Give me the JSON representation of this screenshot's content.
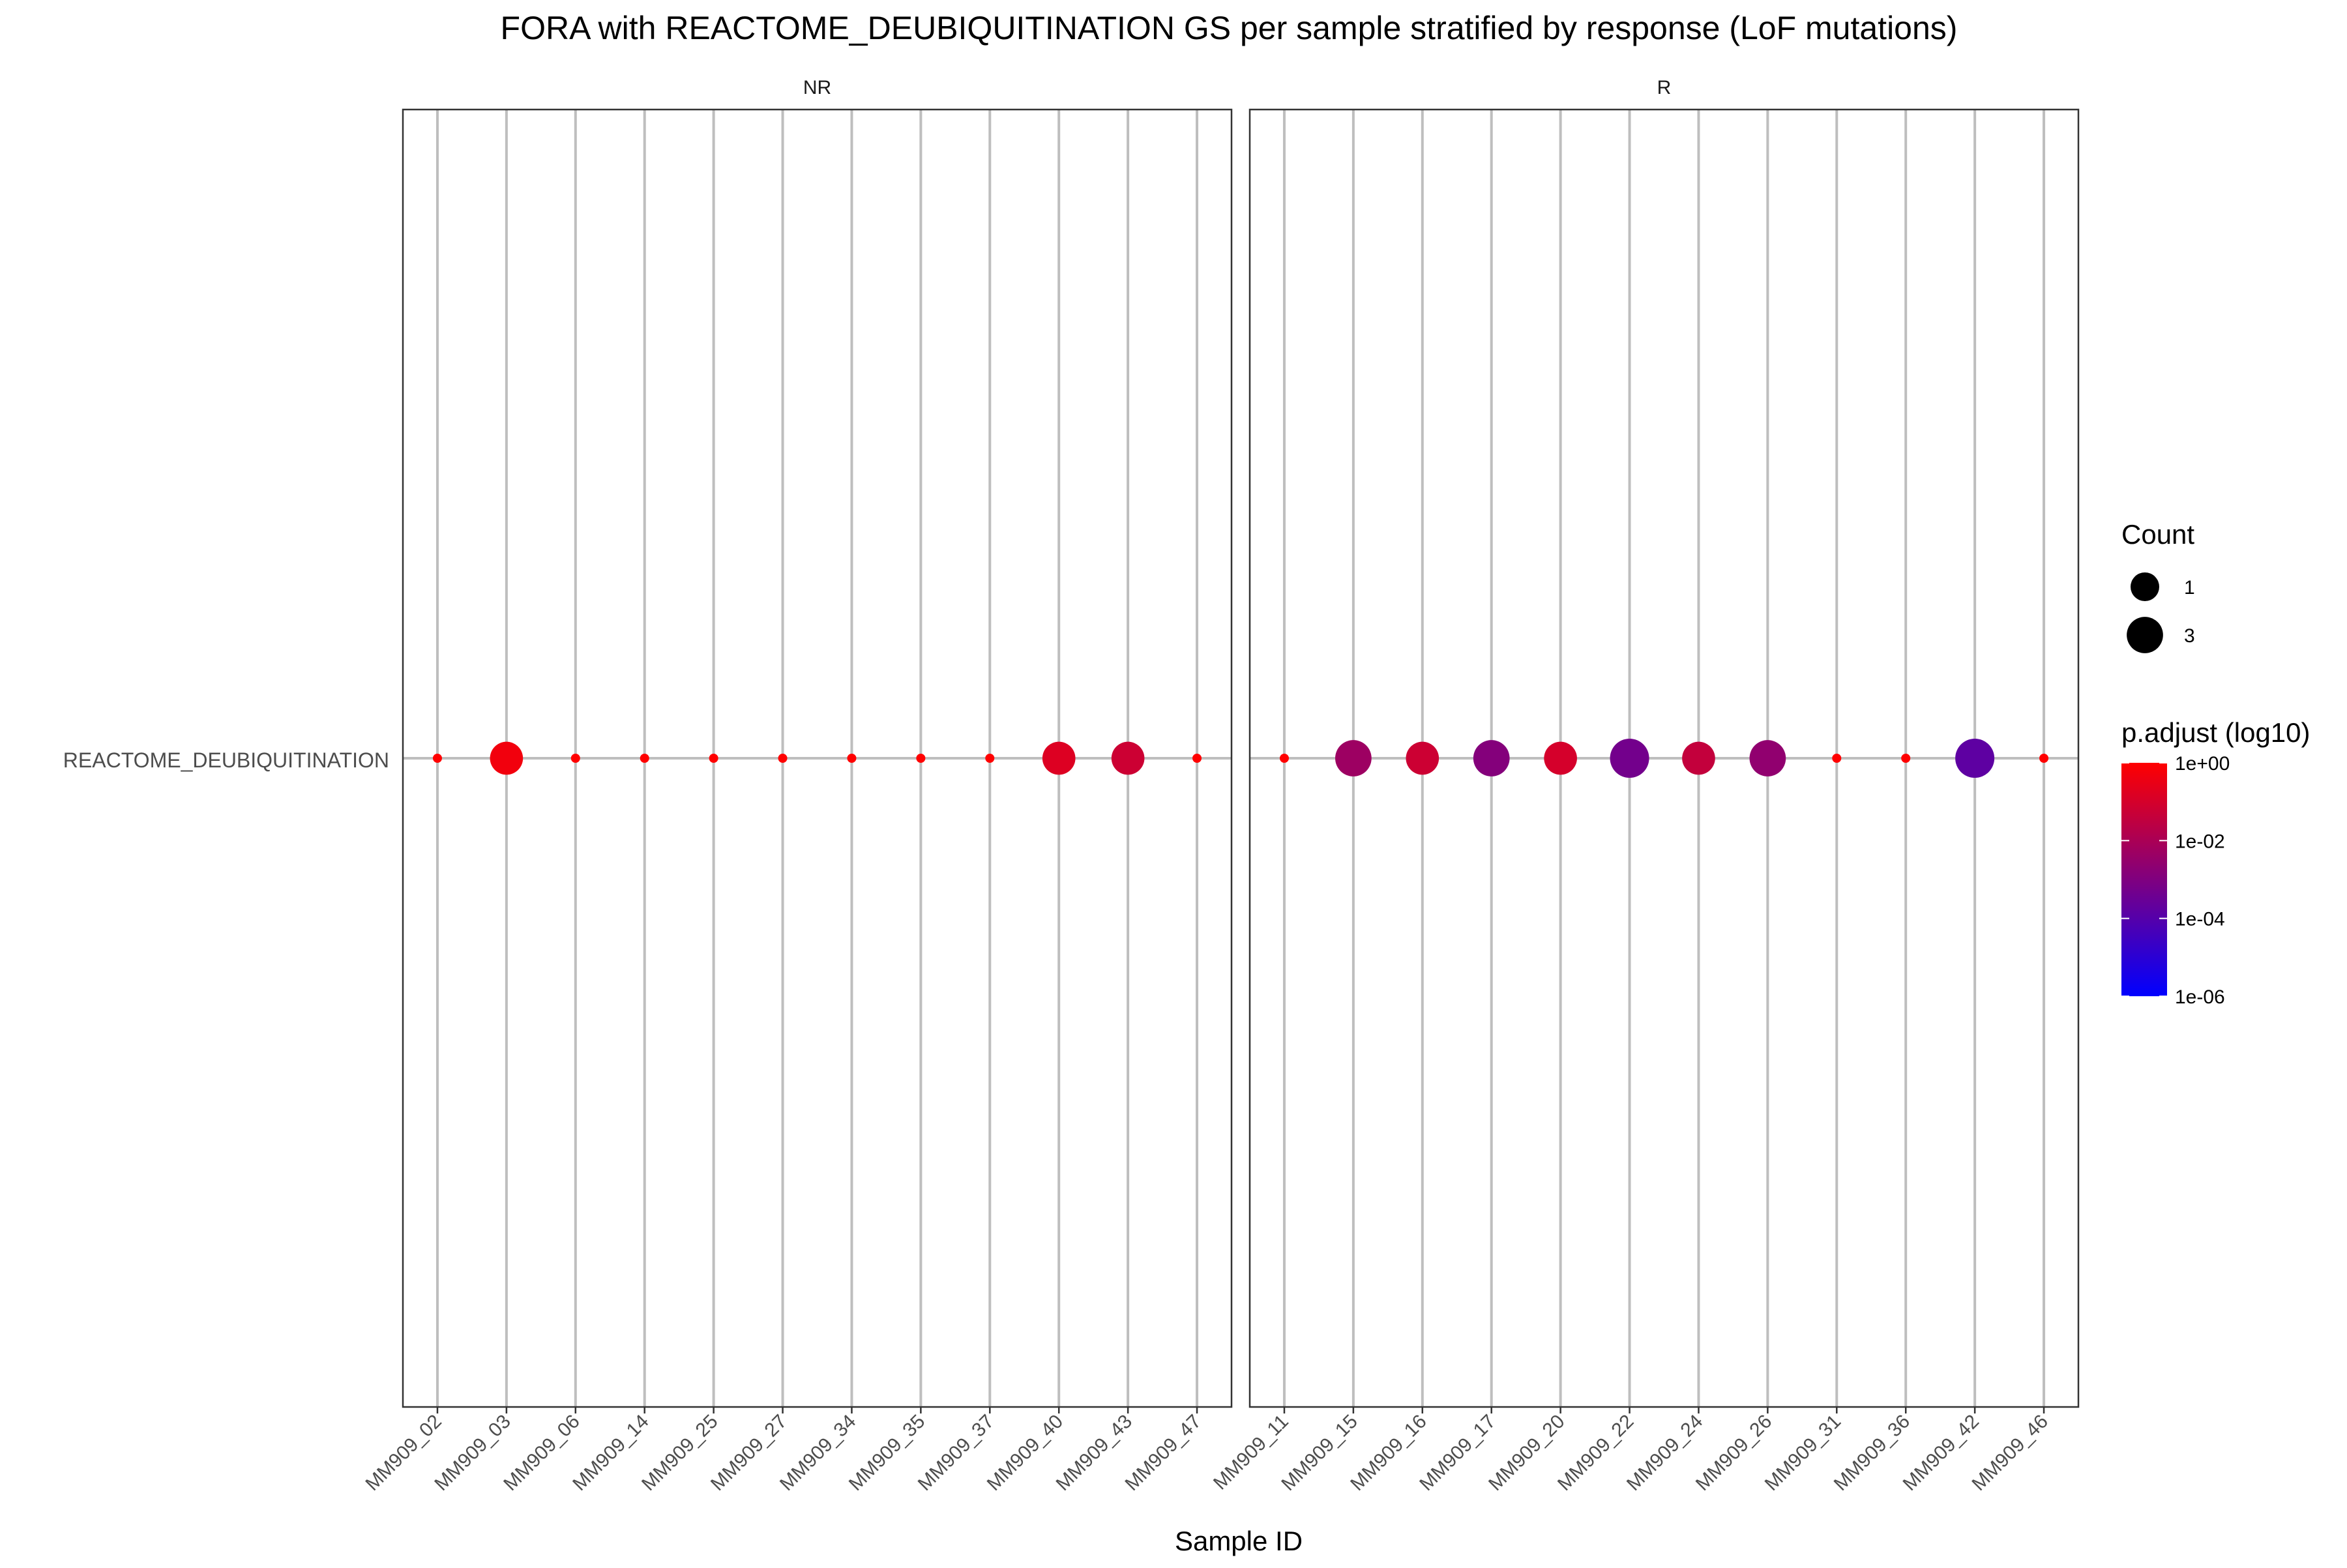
{
  "chart_data": {
    "type": "scatter",
    "title": "FORA with REACTOME_DEUBIQUITINATION GS per sample stratified by response (LoF mutations)",
    "xlabel": "Sample ID",
    "ylabel": "",
    "y_categories": [
      "REACTOME_DEUBIQUITINATION"
    ],
    "grid": true,
    "panels": [
      {
        "strip_label": "NR",
        "samples": [
          "MM909_02",
          "MM909_03",
          "MM909_06",
          "MM909_14",
          "MM909_25",
          "MM909_27",
          "MM909_34",
          "MM909_35",
          "MM909_37",
          "MM909_40",
          "MM909_43",
          "MM909_47"
        ],
        "points": [
          {
            "sample": "MM909_02",
            "term": "REACTOME_DEUBIQUITINATION",
            "count": 0,
            "p_adjust_log10": 0
          },
          {
            "sample": "MM909_03",
            "term": "REACTOME_DEUBIQUITINATION",
            "count": 2,
            "p_adjust_log10": -0.3
          },
          {
            "sample": "MM909_06",
            "term": "REACTOME_DEUBIQUITINATION",
            "count": 0,
            "p_adjust_log10": 0
          },
          {
            "sample": "MM909_14",
            "term": "REACTOME_DEUBIQUITINATION",
            "count": 0,
            "p_adjust_log10": 0
          },
          {
            "sample": "MM909_25",
            "term": "REACTOME_DEUBIQUITINATION",
            "count": 0,
            "p_adjust_log10": 0
          },
          {
            "sample": "MM909_27",
            "term": "REACTOME_DEUBIQUITINATION",
            "count": 0,
            "p_adjust_log10": 0
          },
          {
            "sample": "MM909_34",
            "term": "REACTOME_DEUBIQUITINATION",
            "count": 0,
            "p_adjust_log10": 0
          },
          {
            "sample": "MM909_35",
            "term": "REACTOME_DEUBIQUITINATION",
            "count": 0,
            "p_adjust_log10": 0
          },
          {
            "sample": "MM909_37",
            "term": "REACTOME_DEUBIQUITINATION",
            "count": 0,
            "p_adjust_log10": 0
          },
          {
            "sample": "MM909_40",
            "term": "REACTOME_DEUBIQUITINATION",
            "count": 2,
            "p_adjust_log10": -0.8
          },
          {
            "sample": "MM909_43",
            "term": "REACTOME_DEUBIQUITINATION",
            "count": 2,
            "p_adjust_log10": -1.2
          },
          {
            "sample": "MM909_47",
            "term": "REACTOME_DEUBIQUITINATION",
            "count": 0,
            "p_adjust_log10": 0
          }
        ]
      },
      {
        "strip_label": "R",
        "samples": [
          "MM909_11",
          "MM909_15",
          "MM909_16",
          "MM909_17",
          "MM909_20",
          "MM909_22",
          "MM909_24",
          "MM909_26",
          "MM909_31",
          "MM909_36",
          "MM909_42",
          "MM909_46"
        ],
        "points": [
          {
            "sample": "MM909_11",
            "term": "REACTOME_DEUBIQUITINATION",
            "count": 0,
            "p_adjust_log10": 0
          },
          {
            "sample": "MM909_15",
            "term": "REACTOME_DEUBIQUITINATION",
            "count": 3,
            "p_adjust_log10": -2.3
          },
          {
            "sample": "MM909_16",
            "term": "REACTOME_DEUBIQUITINATION",
            "count": 2,
            "p_adjust_log10": -1.2
          },
          {
            "sample": "MM909_17",
            "term": "REACTOME_DEUBIQUITINATION",
            "count": 3,
            "p_adjust_log10": -2.9
          },
          {
            "sample": "MM909_20",
            "term": "REACTOME_DEUBIQUITINATION",
            "count": 2,
            "p_adjust_log10": -1.0
          },
          {
            "sample": "MM909_22",
            "term": "REACTOME_DEUBIQUITINATION",
            "count": 4,
            "p_adjust_log10": -3.3
          },
          {
            "sample": "MM909_24",
            "term": "REACTOME_DEUBIQUITINATION",
            "count": 2,
            "p_adjust_log10": -1.4
          },
          {
            "sample": "MM909_26",
            "term": "REACTOME_DEUBIQUITINATION",
            "count": 3,
            "p_adjust_log10": -2.6
          },
          {
            "sample": "MM909_31",
            "term": "REACTOME_DEUBIQUITINATION",
            "count": 0,
            "p_adjust_log10": 0
          },
          {
            "sample": "MM909_36",
            "term": "REACTOME_DEUBIQUITINATION",
            "count": 0,
            "p_adjust_log10": 0
          },
          {
            "sample": "MM909_42",
            "term": "REACTOME_DEUBIQUITINATION",
            "count": 4,
            "p_adjust_log10": -3.8
          },
          {
            "sample": "MM909_46",
            "term": "REACTOME_DEUBIQUITINATION",
            "count": 0,
            "p_adjust_log10": 0
          }
        ]
      }
    ],
    "legend": {
      "placement": "right",
      "size": {
        "title": "Count",
        "entries": [
          {
            "label": "1",
            "count": 1
          },
          {
            "label": "3",
            "count": 3
          }
        ]
      },
      "color": {
        "title": "p.adjust (log10)",
        "ticks": [
          {
            "label": "1e+00",
            "value": 0
          },
          {
            "label": "1e-02",
            "value": -2
          },
          {
            "label": "1e-04",
            "value": -4
          },
          {
            "label": "1e-06",
            "value": -6
          }
        ],
        "range": [
          -6,
          0
        ],
        "low_color": "#0000FF",
        "high_color": "#FF0000"
      }
    }
  }
}
